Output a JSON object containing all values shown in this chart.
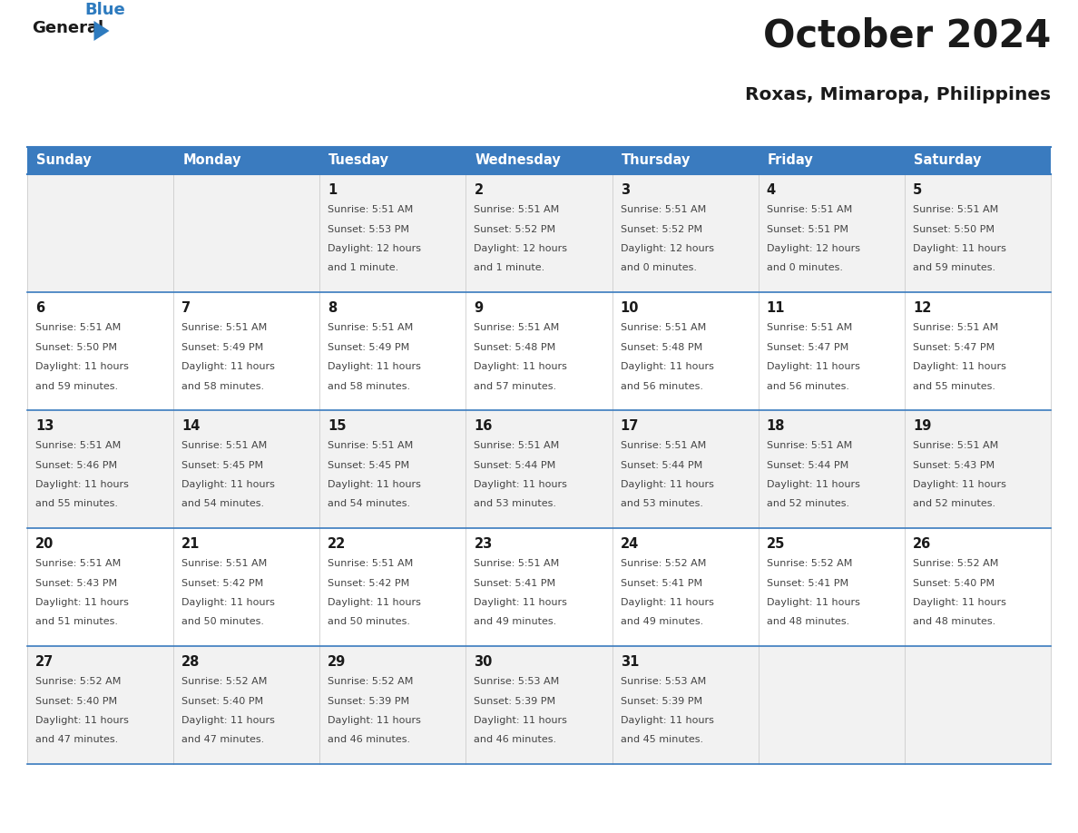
{
  "title": "October 2024",
  "subtitle": "Roxas, Mimaropa, Philippines",
  "header_bg": "#3a7bbf",
  "header_text": "#ffffff",
  "row_bg_even": "#f2f2f2",
  "row_bg_odd": "#ffffff",
  "cell_border_color": "#3a7bbf",
  "vert_line_color": "#cccccc",
  "day_headers": [
    "Sunday",
    "Monday",
    "Tuesday",
    "Wednesday",
    "Thursday",
    "Friday",
    "Saturday"
  ],
  "title_color": "#1a1a1a",
  "subtitle_color": "#1a1a1a",
  "day_num_color": "#1a1a1a",
  "cell_text_color": "#444444",
  "logo_general_color": "#1a1a1a",
  "logo_blue_color": "#2e7bbf",
  "logo_tri_color": "#2e7bbf",
  "days": [
    {
      "day": 1,
      "col": 2,
      "row": 0,
      "sunrise": "5:51 AM",
      "sunset": "5:53 PM",
      "daylight": "12 hours and 1 minute."
    },
    {
      "day": 2,
      "col": 3,
      "row": 0,
      "sunrise": "5:51 AM",
      "sunset": "5:52 PM",
      "daylight": "12 hours and 1 minute."
    },
    {
      "day": 3,
      "col": 4,
      "row": 0,
      "sunrise": "5:51 AM",
      "sunset": "5:52 PM",
      "daylight": "12 hours and 0 minutes."
    },
    {
      "day": 4,
      "col": 5,
      "row": 0,
      "sunrise": "5:51 AM",
      "sunset": "5:51 PM",
      "daylight": "12 hours and 0 minutes."
    },
    {
      "day": 5,
      "col": 6,
      "row": 0,
      "sunrise": "5:51 AM",
      "sunset": "5:50 PM",
      "daylight": "11 hours and 59 minutes."
    },
    {
      "day": 6,
      "col": 0,
      "row": 1,
      "sunrise": "5:51 AM",
      "sunset": "5:50 PM",
      "daylight": "11 hours and 59 minutes."
    },
    {
      "day": 7,
      "col": 1,
      "row": 1,
      "sunrise": "5:51 AM",
      "sunset": "5:49 PM",
      "daylight": "11 hours and 58 minutes."
    },
    {
      "day": 8,
      "col": 2,
      "row": 1,
      "sunrise": "5:51 AM",
      "sunset": "5:49 PM",
      "daylight": "11 hours and 58 minutes."
    },
    {
      "day": 9,
      "col": 3,
      "row": 1,
      "sunrise": "5:51 AM",
      "sunset": "5:48 PM",
      "daylight": "11 hours and 57 minutes."
    },
    {
      "day": 10,
      "col": 4,
      "row": 1,
      "sunrise": "5:51 AM",
      "sunset": "5:48 PM",
      "daylight": "11 hours and 56 minutes."
    },
    {
      "day": 11,
      "col": 5,
      "row": 1,
      "sunrise": "5:51 AM",
      "sunset": "5:47 PM",
      "daylight": "11 hours and 56 minutes."
    },
    {
      "day": 12,
      "col": 6,
      "row": 1,
      "sunrise": "5:51 AM",
      "sunset": "5:47 PM",
      "daylight": "11 hours and 55 minutes."
    },
    {
      "day": 13,
      "col": 0,
      "row": 2,
      "sunrise": "5:51 AM",
      "sunset": "5:46 PM",
      "daylight": "11 hours and 55 minutes."
    },
    {
      "day": 14,
      "col": 1,
      "row": 2,
      "sunrise": "5:51 AM",
      "sunset": "5:45 PM",
      "daylight": "11 hours and 54 minutes."
    },
    {
      "day": 15,
      "col": 2,
      "row": 2,
      "sunrise": "5:51 AM",
      "sunset": "5:45 PM",
      "daylight": "11 hours and 54 minutes."
    },
    {
      "day": 16,
      "col": 3,
      "row": 2,
      "sunrise": "5:51 AM",
      "sunset": "5:44 PM",
      "daylight": "11 hours and 53 minutes."
    },
    {
      "day": 17,
      "col": 4,
      "row": 2,
      "sunrise": "5:51 AM",
      "sunset": "5:44 PM",
      "daylight": "11 hours and 53 minutes."
    },
    {
      "day": 18,
      "col": 5,
      "row": 2,
      "sunrise": "5:51 AM",
      "sunset": "5:44 PM",
      "daylight": "11 hours and 52 minutes."
    },
    {
      "day": 19,
      "col": 6,
      "row": 2,
      "sunrise": "5:51 AM",
      "sunset": "5:43 PM",
      "daylight": "11 hours and 52 minutes."
    },
    {
      "day": 20,
      "col": 0,
      "row": 3,
      "sunrise": "5:51 AM",
      "sunset": "5:43 PM",
      "daylight": "11 hours and 51 minutes."
    },
    {
      "day": 21,
      "col": 1,
      "row": 3,
      "sunrise": "5:51 AM",
      "sunset": "5:42 PM",
      "daylight": "11 hours and 50 minutes."
    },
    {
      "day": 22,
      "col": 2,
      "row": 3,
      "sunrise": "5:51 AM",
      "sunset": "5:42 PM",
      "daylight": "11 hours and 50 minutes."
    },
    {
      "day": 23,
      "col": 3,
      "row": 3,
      "sunrise": "5:51 AM",
      "sunset": "5:41 PM",
      "daylight": "11 hours and 49 minutes."
    },
    {
      "day": 24,
      "col": 4,
      "row": 3,
      "sunrise": "5:52 AM",
      "sunset": "5:41 PM",
      "daylight": "11 hours and 49 minutes."
    },
    {
      "day": 25,
      "col": 5,
      "row": 3,
      "sunrise": "5:52 AM",
      "sunset": "5:41 PM",
      "daylight": "11 hours and 48 minutes."
    },
    {
      "day": 26,
      "col": 6,
      "row": 3,
      "sunrise": "5:52 AM",
      "sunset": "5:40 PM",
      "daylight": "11 hours and 48 minutes."
    },
    {
      "day": 27,
      "col": 0,
      "row": 4,
      "sunrise": "5:52 AM",
      "sunset": "5:40 PM",
      "daylight": "11 hours and 47 minutes."
    },
    {
      "day": 28,
      "col": 1,
      "row": 4,
      "sunrise": "5:52 AM",
      "sunset": "5:40 PM",
      "daylight": "11 hours and 47 minutes."
    },
    {
      "day": 29,
      "col": 2,
      "row": 4,
      "sunrise": "5:52 AM",
      "sunset": "5:39 PM",
      "daylight": "11 hours and 46 minutes."
    },
    {
      "day": 30,
      "col": 3,
      "row": 4,
      "sunrise": "5:53 AM",
      "sunset": "5:39 PM",
      "daylight": "11 hours and 46 minutes."
    },
    {
      "day": 31,
      "col": 4,
      "row": 4,
      "sunrise": "5:53 AM",
      "sunset": "5:39 PM",
      "daylight": "11 hours and 45 minutes."
    }
  ],
  "num_rows": 5,
  "num_cols": 7
}
